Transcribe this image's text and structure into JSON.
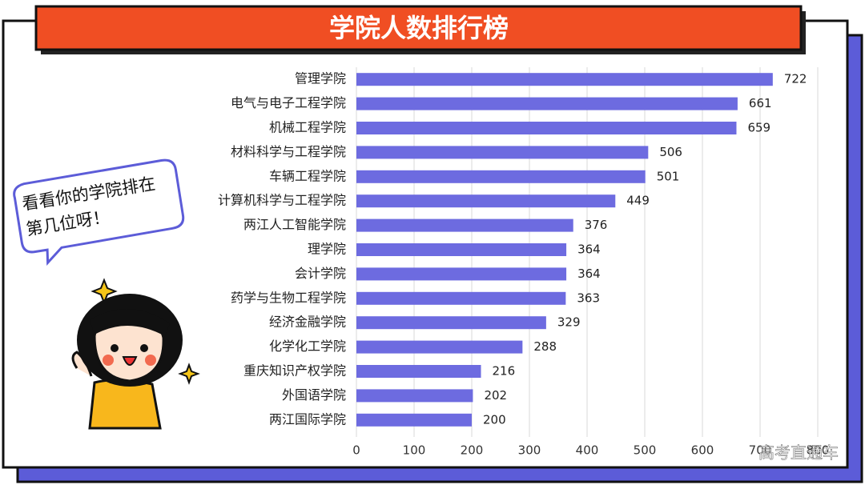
{
  "chart_data": {
    "type": "bar",
    "orientation": "horizontal",
    "title": "学院人数排行榜",
    "categories": [
      "管理学院",
      "电气与电子工程学院",
      "机械工程学院",
      "材料科学与工程学院",
      "车辆工程学院",
      "计算机科学与工程学院",
      "两江人工智能学院",
      "理学院",
      "会计学院",
      "药学与生物工程学院",
      "经济金融学院",
      "化学化工学院",
      "重庆知识产权学院",
      "外国语学院",
      "两江国际学院"
    ],
    "values": [
      722,
      661,
      659,
      506,
      501,
      449,
      376,
      364,
      364,
      363,
      329,
      288,
      216,
      202,
      200
    ],
    "color": "#6d6be0",
    "xlim": [
      0,
      800
    ],
    "xticks": [
      0,
      100,
      200,
      300,
      400,
      500,
      600,
      700,
      800
    ],
    "grid": true,
    "annotation": [
      "看看你的学院排在",
      "第几位呀！"
    ],
    "watermark": "高考直通车"
  }
}
